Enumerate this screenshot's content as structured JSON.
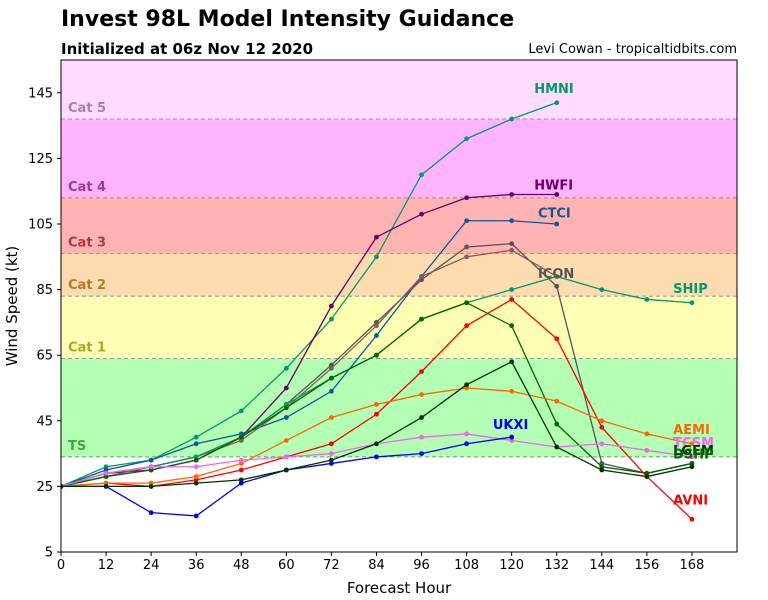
{
  "header": {
    "title": "Invest 98L Model Intensity Guidance",
    "subtitle": "Initialized at 06z Nov 12 2020",
    "credit": "Levi Cowan - tropicaltidbits.com"
  },
  "chart_data": {
    "type": "line",
    "xlabel": "Forecast Hour",
    "ylabel": "Wind Speed (kt)",
    "xlim": [
      0,
      180
    ],
    "ylim": [
      5,
      155
    ],
    "xticks": [
      0,
      12,
      24,
      36,
      48,
      60,
      72,
      84,
      96,
      108,
      120,
      132,
      144,
      156,
      168
    ],
    "yticks": [
      5,
      25,
      45,
      65,
      85,
      105,
      125,
      145
    ],
    "grid": false,
    "bands": [
      {
        "label": "TS",
        "from": 34,
        "to": 64,
        "color": "#b3ffb3",
        "text_color": "#3aaa3a",
        "line_color": "#6a9a6a"
      },
      {
        "label": "Cat 1",
        "from": 64,
        "to": 83,
        "color": "#ffffb3",
        "text_color": "#aaa533",
        "line_color": "#999999"
      },
      {
        "label": "Cat 2",
        "from": 83,
        "to": 96,
        "color": "#ffdcb0",
        "text_color": "#b07a2a",
        "line_color": "#999999"
      },
      {
        "label": "Cat 3",
        "from": 96,
        "to": 113,
        "color": "#ffb3b3",
        "text_color": "#b03a3a",
        "line_color": "#999999"
      },
      {
        "label": "Cat 4",
        "from": 113,
        "to": 137,
        "color": "#ffb3ff",
        "text_color": "#9a3a9a",
        "line_color": "#999999"
      },
      {
        "label": "Cat 5",
        "from": 137,
        "to": 155,
        "color": "#ffdcff",
        "text_color": "#b07ab0",
        "line_color": "#999999"
      }
    ],
    "series": [
      {
        "name": "HMNI",
        "color": "#009a66",
        "x": [
          0,
          12,
          24,
          36,
          48,
          60,
          72,
          84,
          96,
          108,
          120,
          132
        ],
        "y": [
          25,
          31,
          33,
          40,
          48,
          61,
          76,
          95,
          120,
          131,
          137,
          142
        ]
      },
      {
        "name": "HWFI",
        "color": "#660066",
        "x": [
          0,
          12,
          24,
          36,
          48,
          60,
          72,
          84,
          96,
          108,
          120,
          132
        ],
        "y": [
          25,
          29,
          30,
          33,
          40,
          55,
          80,
          101,
          108,
          113,
          114,
          114
        ]
      },
      {
        "name": "CTCI",
        "color": "#0a5a9a",
        "x": [
          0,
          12,
          24,
          36,
          48,
          60,
          72,
          84,
          96,
          108,
          120,
          132
        ],
        "y": [
          25,
          30,
          33,
          38,
          41,
          46,
          54,
          71,
          89,
          106,
          106,
          105
        ]
      },
      {
        "name": "ICON",
        "color": "#555555",
        "x": [
          0,
          12,
          24,
          36,
          48,
          60,
          72,
          84,
          96,
          108,
          120,
          132,
          144,
          156,
          168
        ],
        "y": [
          25,
          29,
          31,
          34,
          40,
          50,
          62,
          75,
          88,
          98,
          99,
          86,
          32,
          29,
          32
        ]
      },
      {
        "name": "",
        "color": "#8a5a5a",
        "x": [
          0,
          12,
          24,
          36,
          48,
          60,
          72,
          84,
          96,
          108,
          120,
          132
        ],
        "y": [
          25,
          28,
          31,
          34,
          39,
          49,
          61,
          74,
          89,
          95,
          97,
          89
        ]
      },
      {
        "name": "SHIP",
        "color": "#009a66",
        "x": [
          0,
          12,
          24,
          36,
          48,
          60,
          72,
          84,
          96,
          108,
          120,
          132,
          144,
          156,
          168
        ],
        "y": [
          25,
          29,
          31,
          34,
          40,
          50,
          58,
          65,
          76,
          81,
          85,
          89,
          85,
          82,
          81
        ]
      },
      {
        "name": "",
        "color": "#006600",
        "x": [
          0,
          12,
          24,
          36,
          48,
          60,
          72,
          84,
          96,
          108,
          120,
          132,
          144,
          156,
          168
        ],
        "y": [
          25,
          28,
          30,
          33,
          40,
          49,
          58,
          65,
          76,
          81,
          74,
          44,
          31,
          29,
          32
        ]
      },
      {
        "name": "AVNI",
        "color": "#ff0000",
        "x": [
          0,
          12,
          24,
          36,
          48,
          60,
          72,
          84,
          96,
          108,
          120,
          132,
          144,
          156,
          168
        ],
        "y": [
          25,
          26,
          25,
          27,
          30,
          34,
          38,
          47,
          60,
          74,
          82,
          70,
          43,
          28,
          15
        ]
      },
      {
        "name": "AEMI",
        "color": "#ff6600",
        "x": [
          0,
          12,
          24,
          36,
          48,
          60,
          72,
          84,
          96,
          108,
          120,
          132,
          144,
          156,
          168
        ],
        "y": [
          25,
          26,
          26,
          28,
          32,
          39,
          46,
          50,
          53,
          55,
          54,
          51,
          45,
          41,
          38
        ]
      },
      {
        "name": "TCSM",
        "color": "#ee66ee",
        "x": [
          0,
          12,
          24,
          36,
          48,
          60,
          72,
          84,
          96,
          108,
          120,
          132,
          144,
          156,
          168
        ],
        "y": [
          25,
          29,
          31,
          31,
          33,
          34,
          35,
          38,
          40,
          41,
          39,
          37,
          38,
          36,
          34
        ]
      },
      {
        "name": "UKXI",
        "color": "#0000ff",
        "x": [
          0,
          12,
          24,
          36,
          48,
          60,
          72,
          84,
          96,
          108,
          120
        ],
        "y": [
          25,
          25,
          17,
          16,
          26,
          30,
          32,
          34,
          35,
          38,
          40
        ]
      },
      {
        "name": "LGEM",
        "color": "#003300",
        "x": [
          0,
          12,
          24,
          36,
          48,
          60,
          72,
          84,
          96,
          108,
          120,
          132,
          144,
          156,
          168
        ],
        "y": [
          25,
          25,
          25,
          26,
          27,
          30,
          33,
          38,
          46,
          56,
          63,
          37,
          30,
          28,
          31
        ]
      }
    ],
    "annotations": [
      {
        "text": "HMNI",
        "color": "#009a66",
        "x": 126,
        "y": 145
      },
      {
        "text": "HWFI",
        "color": "#660066",
        "x": 126,
        "y": 115.5
      },
      {
        "text": "CTCI",
        "color": "#0a5a9a",
        "x": 127,
        "y": 107
      },
      {
        "text": "ICON",
        "color": "#555555",
        "x": 127,
        "y": 88.5
      },
      {
        "text": "SHIP",
        "color": "#009a66",
        "x": 163,
        "y": 84
      },
      {
        "text": "UKXI",
        "color": "#0000ff",
        "x": 115,
        "y": 42.5
      },
      {
        "text": "AEMI",
        "color": "#ff6600",
        "x": 163,
        "y": 41
      },
      {
        "text": "TCSM",
        "color": "#ee66ee",
        "x": 163,
        "y": 37
      },
      {
        "text": "LGEM",
        "color": "#003300",
        "x": 163,
        "y": 34.5
      },
      {
        "text": "DSHP",
        "color": "#006600",
        "x": 163,
        "y": 33.5
      },
      {
        "text": "AVNI",
        "color": "#ff0000",
        "x": 163,
        "y": 19.5
      }
    ]
  }
}
